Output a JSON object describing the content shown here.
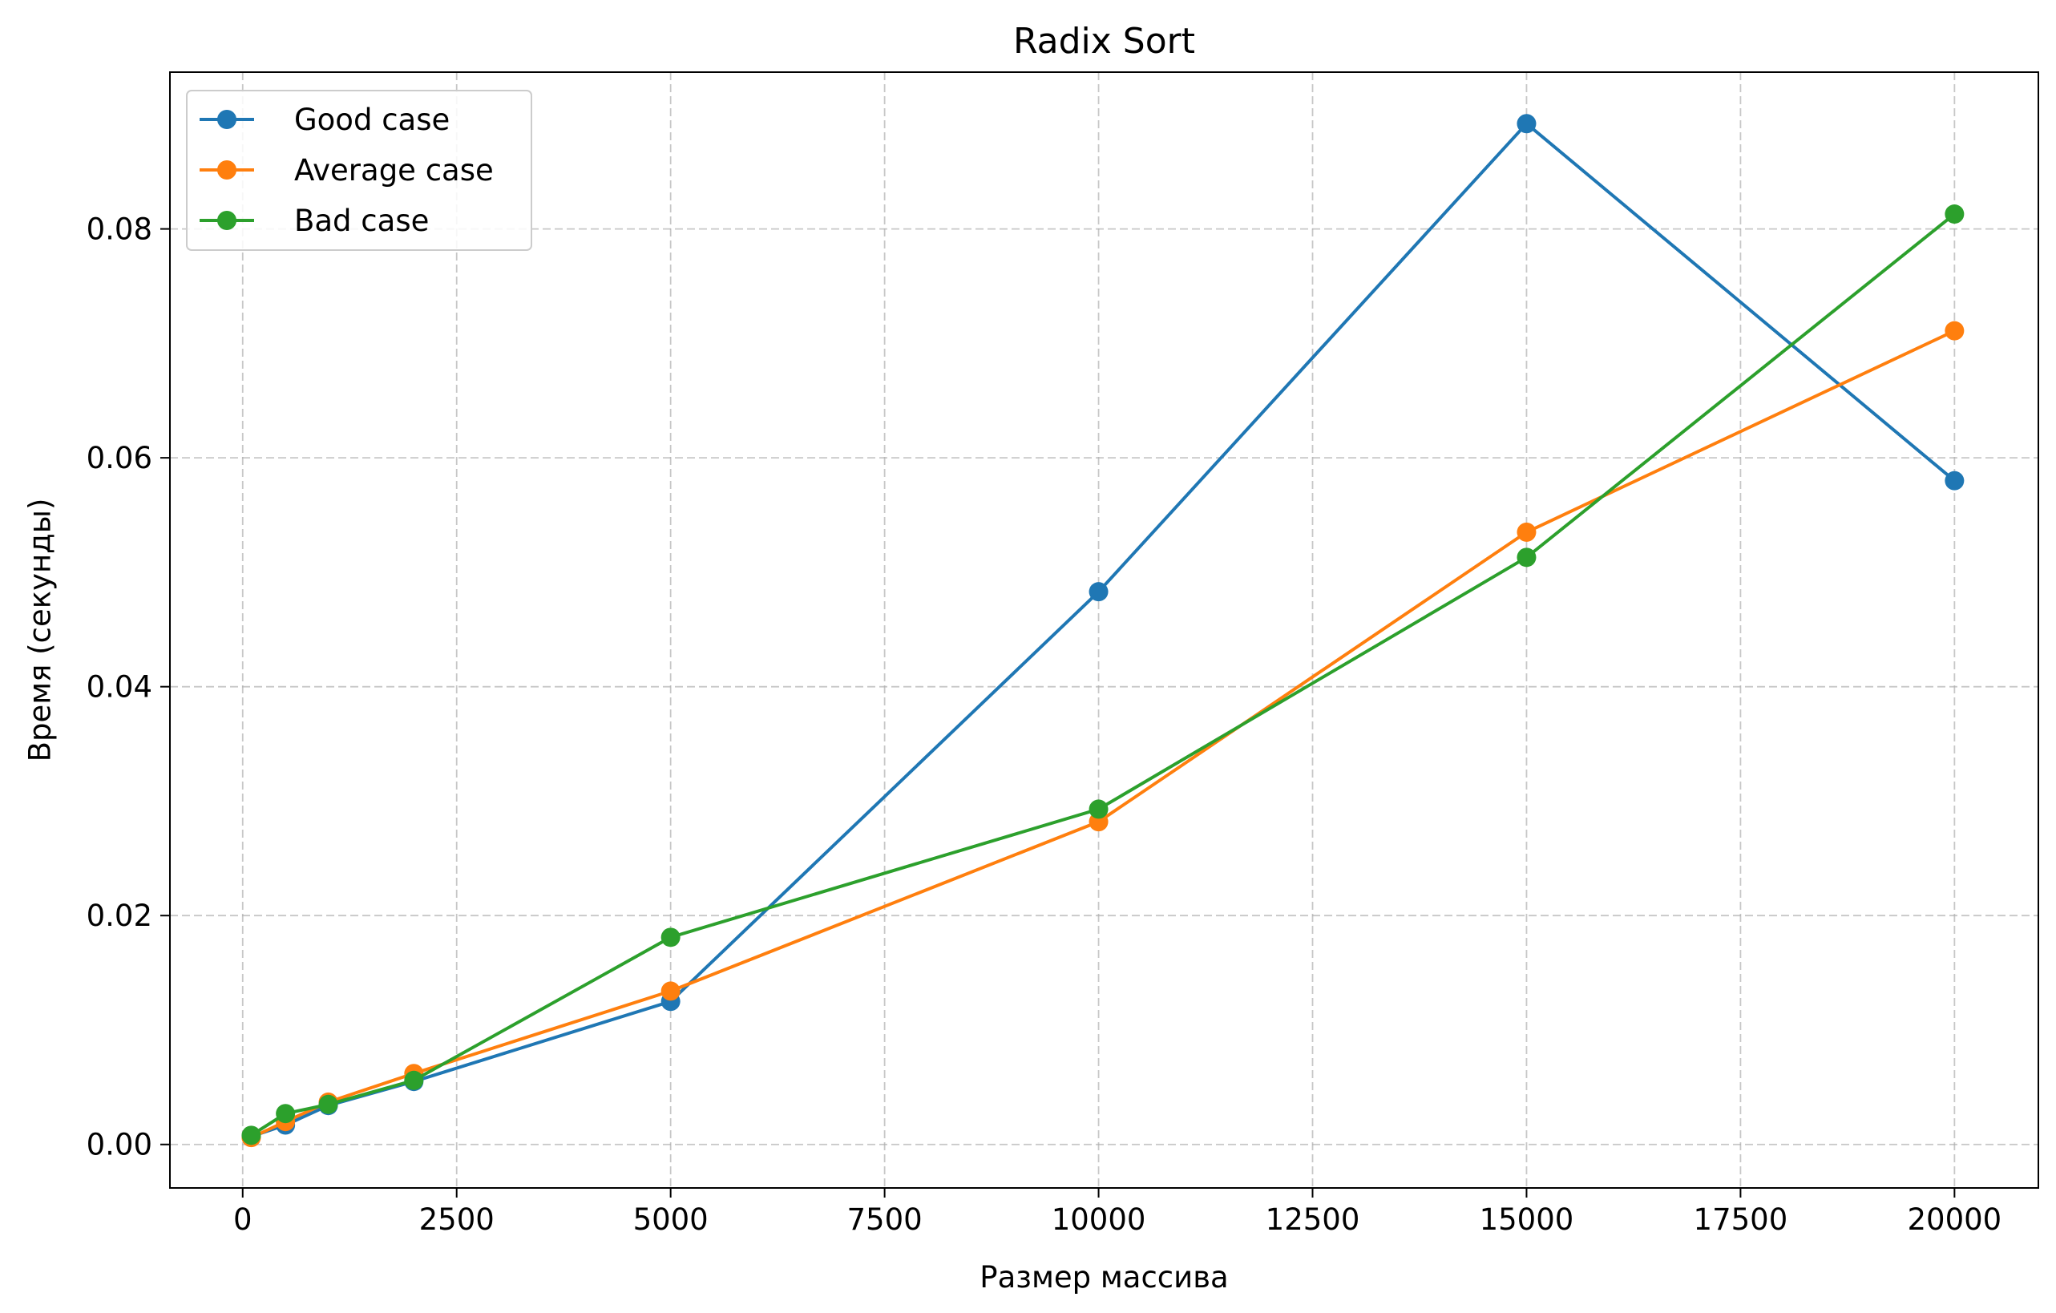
{
  "chart_data": {
    "type": "line",
    "title": "Radix Sort",
    "xlabel": "Размер массива",
    "ylabel": "Время (секунды)",
    "x": [
      100,
      500,
      1000,
      2000,
      5000,
      10000,
      15000,
      20000
    ],
    "xlim": [
      -850,
      20980
    ],
    "ylim": [
      -0.0038,
      0.0937
    ],
    "xticks": [
      0,
      2500,
      5000,
      7500,
      10000,
      12500,
      15000,
      17500,
      20000
    ],
    "xtick_labels": [
      "0",
      "2500",
      "5000",
      "7500",
      "10000",
      "12500",
      "15000",
      "17500",
      "20000"
    ],
    "yticks": [
      0.0,
      0.02,
      0.04,
      0.06,
      0.08
    ],
    "ytick_labels": [
      "0.00",
      "0.02",
      "0.04",
      "0.06",
      "0.08"
    ],
    "grid": true,
    "legend_position": "top-left",
    "series": [
      {
        "name": "Good case",
        "color": "#1f77b4",
        "values": [
          0.0007,
          0.0017,
          0.0034,
          0.0055,
          0.0125,
          0.0483,
          0.0892,
          0.058
        ]
      },
      {
        "name": "Average case",
        "color": "#ff7f0e",
        "values": [
          0.0006,
          0.002,
          0.0037,
          0.0062,
          0.0134,
          0.0282,
          0.0535,
          0.0711
        ]
      },
      {
        "name": "Bad case",
        "color": "#2ca02c",
        "values": [
          0.0008,
          0.0027,
          0.0035,
          0.0056,
          0.0181,
          0.0293,
          0.0513,
          0.0813
        ]
      }
    ]
  }
}
